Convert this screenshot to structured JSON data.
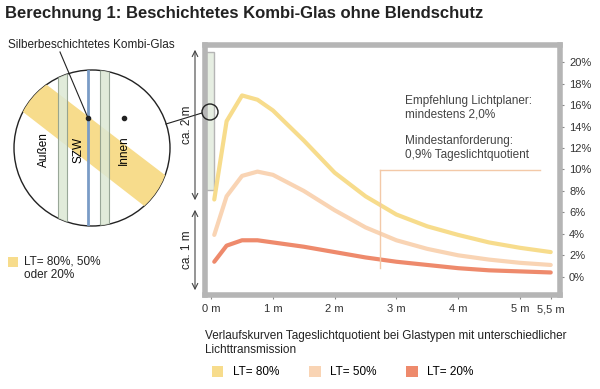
{
  "title": "Berechnung 1: Beschichtetes Kombi-Glas ohne Blendschutz",
  "detail": {
    "label": "Silberbeschichtetes Kombi-Glas",
    "layers": [
      "Außen",
      "SZW",
      "Innen"
    ],
    "note": "LT= 80%, 50%\noder 20%"
  },
  "room": {
    "upper_height": "ca. 2 m",
    "lower_height": "ca. 1 m"
  },
  "caption": "Verlaufskurven Tageslichtquotient bei Glastypen mit unterschiedlicher Lichttransmission",
  "chart_data": {
    "type": "line",
    "x": [
      0.05,
      0.25,
      0.5,
      0.75,
      1,
      1.5,
      2,
      2.5,
      3,
      3.5,
      4,
      4.5,
      5,
      5.5
    ],
    "series": [
      {
        "name": "LT= 80%",
        "color": "#f7dc8c",
        "line_style": "solid",
        "values": [
          7.2,
          14.5,
          16.9,
          16.5,
          15.5,
          12.7,
          9.7,
          7.5,
          5.8,
          4.7,
          3.9,
          3.2,
          2.7,
          2.3
        ]
      },
      {
        "name": "LT= 50%",
        "color": "#f9d4b4",
        "line_style": "solid",
        "values": [
          3.9,
          7.5,
          9.4,
          9.8,
          9.5,
          8.0,
          6.2,
          4.6,
          3.4,
          2.6,
          2.0,
          1.6,
          1.3,
          1.1
        ]
      },
      {
        "name": "LT= 20%",
        "color": "#ee8a6c",
        "line_style": "solid",
        "values": [
          1.4,
          2.9,
          3.4,
          3.4,
          3.2,
          2.8,
          2.3,
          1.8,
          1.4,
          1.1,
          0.8,
          0.6,
          0.5,
          0.4
        ]
      }
    ],
    "xlim": [
      -0.1,
      5.65
    ],
    "ylim": [
      -1.7,
      21.6
    ],
    "xticks": [
      {
        "value": 0,
        "label": "0 m"
      },
      {
        "value": 1,
        "label": "1 m"
      },
      {
        "value": 2,
        "label": "2 m"
      },
      {
        "value": 3,
        "label": "3 m"
      },
      {
        "value": 4,
        "label": "4 m"
      },
      {
        "value": 5,
        "label": "5 m"
      },
      {
        "value": 5.5,
        "label": "5,5 m"
      }
    ],
    "yticks": [
      {
        "value": 0,
        "label": "0%"
      },
      {
        "value": 2,
        "label": "2%"
      },
      {
        "value": 4,
        "label": "4%"
      },
      {
        "value": 6,
        "label": "6%"
      },
      {
        "value": 8,
        "label": "8%"
      },
      {
        "value": 10,
        "label": "10%"
      },
      {
        "value": 12,
        "label": "12%"
      },
      {
        "value": 14,
        "label": "14%"
      },
      {
        "value": 16,
        "label": "16%"
      },
      {
        "value": 18,
        "label": "18%"
      },
      {
        "value": 20,
        "label": "20%"
      }
    ],
    "annotations": [
      "Empfehlung Lichtplaner:\nmindestens 2,0%",
      "Mindestanforderung:\n0,9% Tageslichtquotient"
    ],
    "grid": false,
    "legend": "lower left"
  }
}
